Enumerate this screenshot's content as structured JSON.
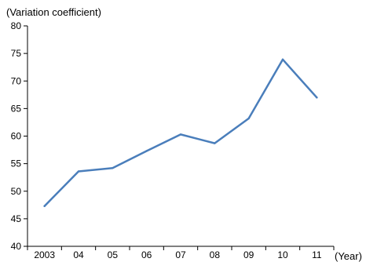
{
  "chart_data": {
    "type": "line",
    "title": "",
    "xlabel": "(Year)",
    "ylabel": "(Variation coefficient)",
    "categories": [
      "2003",
      "04",
      "05",
      "06",
      "07",
      "08",
      "09",
      "10",
      "11"
    ],
    "ylim": [
      40,
      80
    ],
    "yticks": [
      40,
      45,
      50,
      55,
      60,
      65,
      70,
      75,
      80
    ],
    "grid": false,
    "legend": "none",
    "series": [
      {
        "values": [
          47.3,
          53.6,
          54.2,
          57.3,
          60.3,
          58.7,
          63.2,
          73.9,
          67.0
        ],
        "color": "#4a7ebb"
      }
    ]
  }
}
